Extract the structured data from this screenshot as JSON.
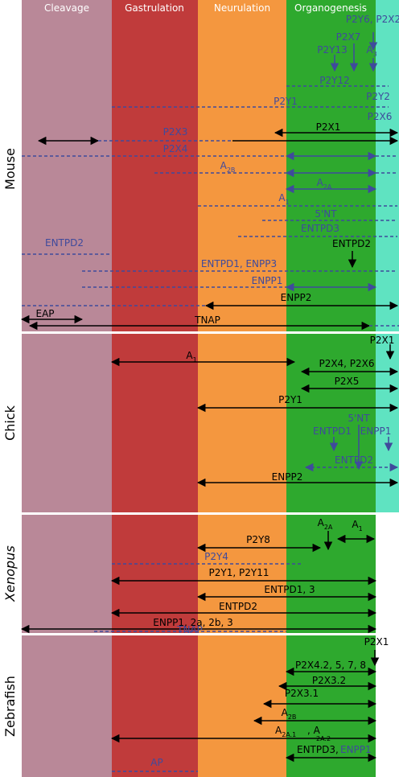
{
  "stages": [
    {
      "key": "cleavage",
      "label": "Cleavage",
      "color": "#b98898"
    },
    {
      "key": "gastrulation",
      "label": "Gastrulation",
      "color": "#c03b3b"
    },
    {
      "key": "neurulation",
      "label": "Neurulation",
      "color": "#f4973f"
    },
    {
      "key": "organogenesis",
      "label": "Organogenesis",
      "color": "#2ea92e"
    }
  ],
  "late_color": "#5fe3c1",
  "colors": {
    "black": "#000000",
    "blue": "#3f4a9c",
    "white": "#ffffff"
  },
  "panels": [
    {
      "key": "mouse",
      "species": "Mouse",
      "italic": false,
      "late_band": true,
      "items": [
        {
          "label": "P2Y6, P2X2",
          "label_color": "blue"
        },
        {
          "label": "P2X7",
          "label_color": "blue"
        },
        {
          "label": "P2Y13",
          "label_color": "blue"
        },
        {
          "label": "A",
          "sub": "3",
          "label_color": "blue"
        },
        {
          "label": "P2Y12",
          "label_color": "blue"
        },
        {
          "label": "P2Y2",
          "label_color": "blue"
        },
        {
          "label": "P2Y1",
          "label_color": "blue"
        },
        {
          "label": "P2X6",
          "label_color": "blue"
        },
        {
          "label": "P2X1",
          "label_color": "black"
        },
        {
          "label": "P2X3",
          "label_color": "blue"
        },
        {
          "label": "P2X4",
          "label_color": "blue"
        },
        {
          "label": "A",
          "sub": "2B",
          "label_color": "blue"
        },
        {
          "label": "A",
          "sub": "2A",
          "label_color": "blue"
        },
        {
          "label": "A",
          "sub": "1",
          "label_color": "blue"
        },
        {
          "label": "5'NT",
          "label_color": "blue"
        },
        {
          "label": "ENTPD3",
          "label_color": "blue"
        },
        {
          "label": "ENTPD2",
          "label_color": "blue"
        },
        {
          "label": "ENTPD2",
          "label_color": "black"
        },
        {
          "label": "ENTPD1, ENPP3",
          "label_color": "blue"
        },
        {
          "label": "ENPP1",
          "label_color": "blue"
        },
        {
          "label": "ENPP2",
          "label_color": "black"
        },
        {
          "label": "EAP",
          "label_color": "black"
        },
        {
          "label": "TNAP",
          "label_color": "black"
        }
      ]
    },
    {
      "key": "chick",
      "species": "Chick",
      "italic": false,
      "late_band": true,
      "items": [
        {
          "label": "P2X1",
          "label_color": "black"
        },
        {
          "label": "A",
          "sub": "1",
          "label_color": "black"
        },
        {
          "label": "P2X4, P2X6",
          "label_color": "black"
        },
        {
          "label": "P2X5",
          "label_color": "black"
        },
        {
          "label": "P2Y1",
          "label_color": "black"
        },
        {
          "label": "5'NT",
          "label_color": "blue"
        },
        {
          "label": "ENTPD1",
          "label_color": "blue"
        },
        {
          "label": "ENPP1",
          "label_color": "blue"
        },
        {
          "label": "ENTPD2",
          "label_color": "blue"
        },
        {
          "label": "ENPP2",
          "label_color": "black"
        }
      ]
    },
    {
      "key": "xenopus",
      "species": "Xenopus",
      "italic": true,
      "late_band": false,
      "items": [
        {
          "label": "A",
          "sub": "2A",
          "label_color": "black"
        },
        {
          "label": "A",
          "sub": "1",
          "label_color": "black"
        },
        {
          "label": "P2Y8",
          "label_color": "black"
        },
        {
          "label": "P2Y4",
          "label_color": "blue"
        },
        {
          "label": "P2Y1, P2Y11",
          "label_color": "black"
        },
        {
          "label": "ENTPD1, 3",
          "label_color": "black"
        },
        {
          "label": "ENTPD2",
          "label_color": "black"
        },
        {
          "label": "ENPP1, 2a, 2b, 3",
          "label_color": "black"
        },
        {
          "label": "TNAP",
          "label_color": "blue"
        }
      ]
    },
    {
      "key": "zebrafish",
      "species": "Zebrafish",
      "italic": false,
      "late_band": false,
      "items": [
        {
          "label": "P2X1",
          "label_color": "black"
        },
        {
          "label": "P2X4.2, 5, 7, 8",
          "label_color": "black"
        },
        {
          "label": "P2X3.2",
          "label_color": "black"
        },
        {
          "label": "P2X3.1",
          "label_color": "black"
        },
        {
          "label": "A",
          "sub": "2B",
          "label_color": "black"
        },
        {
          "label": "A",
          "sub": "2A.1",
          "label_color": "black"
        },
        {
          "label": ", A",
          "label_color": "black"
        },
        {
          "label": "",
          "sub": "2A.2",
          "label_color": "black"
        },
        {
          "label": "ENTPD3,",
          "label_color": "black"
        },
        {
          "label": "ENPP1",
          "label_color": "blue"
        },
        {
          "label": "AP",
          "label_color": "blue"
        }
      ]
    }
  ]
}
